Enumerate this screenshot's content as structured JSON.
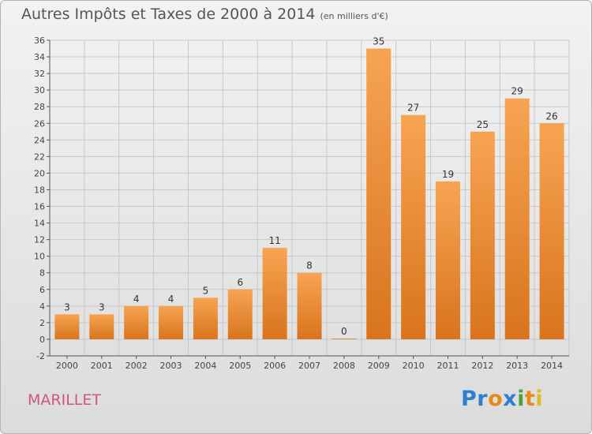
{
  "chart_data": {
    "type": "bar",
    "title": "Autres Impôts et Taxes de 2000 à 2014",
    "subtitle": "(en milliers d'€)",
    "categories": [
      "2000",
      "2001",
      "2002",
      "2003",
      "2004",
      "2005",
      "2006",
      "2007",
      "2008",
      "2009",
      "2010",
      "2011",
      "2012",
      "2013",
      "2014"
    ],
    "values": [
      3,
      3,
      4,
      4,
      5,
      6,
      11,
      8,
      0,
      35,
      27,
      19,
      25,
      29,
      26
    ],
    "ylim": [
      -2,
      36
    ],
    "yticks": [
      -2,
      0,
      2,
      4,
      6,
      8,
      10,
      12,
      14,
      16,
      18,
      20,
      22,
      24,
      26,
      28,
      30,
      32,
      34,
      36
    ],
    "grid": true,
    "bar_color": "#f0913a"
  },
  "commune": "MARILLET",
  "logo": [
    "Pr",
    "o",
    "x",
    "i",
    "t",
    "i"
  ]
}
